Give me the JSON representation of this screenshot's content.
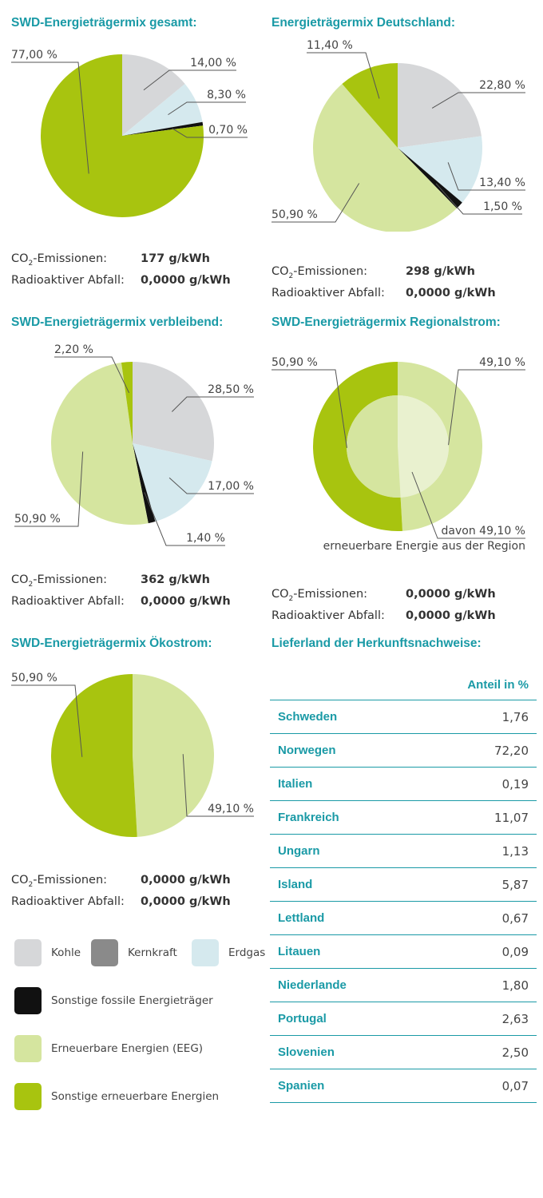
{
  "colors": {
    "kohle": "#d6d7d9",
    "kernkraft": "#8a8a8a",
    "erdgas": "#d5e9ee",
    "sonstige_fossile": "#111111",
    "eeg": "#d5e59f",
    "sonstige_erneuerbare": "#a8c40f",
    "regional_inner": "#e9f1cf",
    "accent": "#1a9aa6"
  },
  "chart_data": [
    {
      "type": "pie",
      "title": "SWD-Energieträgermix gesamt:",
      "slices": [
        {
          "label": "14,00 %",
          "value": 14.0,
          "color": "#d6d7d9"
        },
        {
          "label": "8,30 %",
          "value": 8.3,
          "color": "#d5e9ee"
        },
        {
          "label": "0,70 %",
          "value": 0.7,
          "color": "#111111"
        },
        {
          "label": "77,00 %",
          "value": 77.0,
          "color": "#a8c40f"
        }
      ],
      "co2_label": "CO2-Emissionen:",
      "co2_value": "177 g/kWh",
      "waste_label": "Radioaktiver Abfall:",
      "waste_value": "0,0000 g/kWh"
    },
    {
      "type": "pie",
      "title": "Energieträgermix Deutschland:",
      "slices": [
        {
          "label": "22,80 %",
          "value": 22.8,
          "color": "#d6d7d9"
        },
        {
          "label": "13,40 %",
          "value": 13.4,
          "color": "#d5e9ee"
        },
        {
          "label": "1,50 %",
          "value": 1.5,
          "color": "#111111"
        },
        {
          "label": "50,90 %",
          "value": 50.9,
          "color": "#d5e59f"
        },
        {
          "label": "11,40 %",
          "value": 11.4,
          "color": "#a8c40f"
        }
      ],
      "co2_label": "CO2-Emissionen:",
      "co2_value": "298 g/kWh",
      "waste_label": "Radioaktiver Abfall:",
      "waste_value": "0,0000 g/kWh"
    },
    {
      "type": "pie",
      "title": "SWD-Energieträgermix verbleibend:",
      "slices": [
        {
          "label": "28,50 %",
          "value": 28.5,
          "color": "#d6d7d9"
        },
        {
          "label": "17,00 %",
          "value": 17.0,
          "color": "#d5e9ee"
        },
        {
          "label": "1,40 %",
          "value": 1.4,
          "color": "#111111"
        },
        {
          "label": "50,90 %",
          "value": 50.9,
          "color": "#d5e59f"
        },
        {
          "label": "2,20 %",
          "value": 2.2,
          "color": "#a8c40f"
        }
      ],
      "co2_label": "CO2-Emissionen:",
      "co2_value": "362 g/kWh",
      "waste_label": "Radioaktiver Abfall:",
      "waste_value": "0,0000 g/kWh"
    },
    {
      "type": "pie",
      "title": "SWD-Energieträgermix Regionalstrom:",
      "slices": [
        {
          "label": "49,10 %",
          "value": 49.1,
          "color": "#d5e59f"
        },
        {
          "label": "50,90 %",
          "value": 50.9,
          "color": "#a8c40f"
        }
      ],
      "inner_label": "davon 49,10 %",
      "inner_note": "erneuerbare Energie aus der Region",
      "co2_label": "CO2-Emissionen:",
      "co2_value": "0,0000 g/kWh",
      "waste_label": "Radioaktiver Abfall:",
      "waste_value": "0,0000 g/kWh"
    },
    {
      "type": "pie",
      "title": "SWD-Energieträgermix Ökostrom:",
      "slices": [
        {
          "label": "49,10 %",
          "value": 49.1,
          "color": "#d5e59f"
        },
        {
          "label": "50,90 %",
          "value": 50.9,
          "color": "#a8c40f"
        }
      ],
      "co2_label": "CO2-Emissionen:",
      "co2_value": "0,0000 g/kWh",
      "waste_label": "Radioaktiver Abfall:",
      "waste_value": "0,0000 g/kWh"
    },
    {
      "type": "table",
      "title": "Lieferland der Herkunftsnachweise:",
      "column_header": "Anteil in %",
      "rows": [
        {
          "country": "Schweden",
          "value": "1,76"
        },
        {
          "country": "Norwegen",
          "value": "72,20"
        },
        {
          "country": "Italien",
          "value": "0,19"
        },
        {
          "country": "Frankreich",
          "value": "11,07"
        },
        {
          "country": "Ungarn",
          "value": "1,13"
        },
        {
          "country": "Island",
          "value": "5,87"
        },
        {
          "country": "Lettland",
          "value": "0,67"
        },
        {
          "country": "Litauen",
          "value": "0,09"
        },
        {
          "country": "Niederlande",
          "value": "1,80"
        },
        {
          "country": "Portugal",
          "value": "2,63"
        },
        {
          "country": "Slovenien",
          "value": "2,50"
        },
        {
          "country": "Spanien",
          "value": "0,07"
        }
      ]
    }
  ],
  "legend": [
    {
      "label": "Kohle",
      "color": "#d6d7d9"
    },
    {
      "label": "Kernkraft",
      "color": "#8a8a8a"
    },
    {
      "label": "Erdgas",
      "color": "#d5e9ee"
    },
    {
      "label": "Sonstige fossile Energieträger",
      "color": "#111111"
    },
    {
      "label": "Erneuerbare Energien (EEG)",
      "color": "#d5e59f"
    },
    {
      "label": "Sonstige erneuerbare Energien",
      "color": "#a8c40f"
    }
  ]
}
